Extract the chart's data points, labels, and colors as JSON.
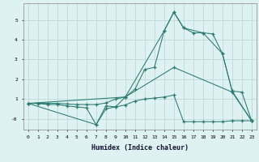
{
  "xlabel": "Humidex (Indice chaleur)",
  "background_color": "#dff2f2",
  "grid_color": "#b8d4d4",
  "line_color": "#2a7a70",
  "xlim": [
    -0.5,
    23.5
  ],
  "ylim": [
    -0.55,
    5.85
  ],
  "yticks": [
    0,
    1,
    2,
    3,
    4,
    5
  ],
  "ytick_labels": [
    "-0",
    "1",
    "2",
    "3",
    "4",
    "5"
  ],
  "series": [
    {
      "x": [
        0,
        1,
        2,
        3,
        4,
        5,
        6,
        7,
        8,
        9,
        10,
        11,
        12,
        13,
        14,
        15,
        16,
        17,
        18,
        19,
        20,
        21,
        22,
        23
      ],
      "y": [
        0.78,
        0.78,
        0.78,
        0.78,
        0.75,
        0.72,
        0.72,
        0.72,
        0.8,
        1.0,
        1.1,
        1.5,
        2.5,
        2.6,
        4.45,
        5.4,
        4.6,
        4.35,
        4.35,
        4.3,
        3.3,
        1.4,
        1.35,
        -0.1
      ]
    },
    {
      "x": [
        0,
        1,
        2,
        3,
        4,
        5,
        6,
        7,
        8,
        9,
        10,
        11,
        12,
        13,
        14,
        15,
        16,
        17,
        18,
        19,
        20,
        21,
        22,
        23
      ],
      "y": [
        0.78,
        0.78,
        0.72,
        0.72,
        0.65,
        0.6,
        0.55,
        -0.3,
        0.5,
        0.6,
        0.7,
        0.9,
        1.0,
        1.05,
        1.1,
        1.2,
        -0.15,
        -0.15,
        -0.15,
        -0.15,
        -0.15,
        -0.1,
        -0.1,
        -0.1
      ]
    },
    {
      "x": [
        0,
        10,
        14,
        15,
        16,
        18,
        20,
        21,
        23
      ],
      "y": [
        0.78,
        1.1,
        4.45,
        5.4,
        4.6,
        4.35,
        3.3,
        1.4,
        -0.1
      ]
    },
    {
      "x": [
        0,
        7,
        8,
        9,
        10,
        15,
        21,
        23
      ],
      "y": [
        0.78,
        -0.3,
        0.65,
        0.6,
        1.1,
        2.6,
        1.35,
        -0.1
      ]
    }
  ]
}
